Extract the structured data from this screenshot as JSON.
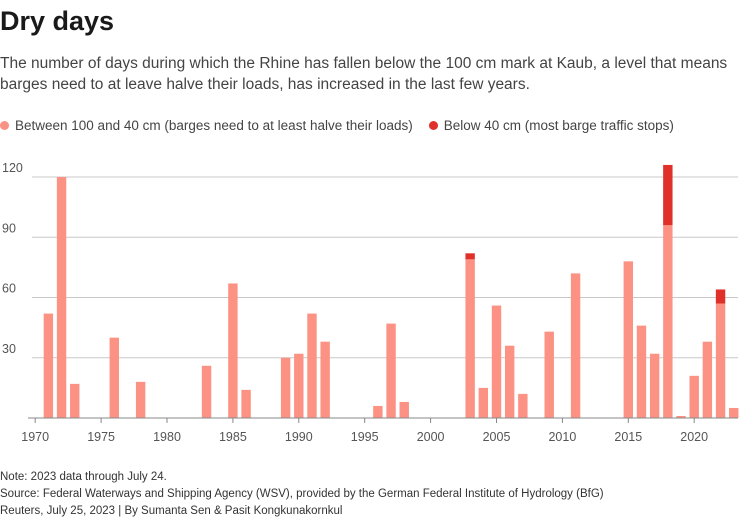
{
  "header": {
    "title": "Dry days",
    "subtitle": "The number of days during which the Rhine has fallen below the 100 cm mark at Kaub, a level that means barges need to at leave halve their loads, has increased in the last few years."
  },
  "legend": {
    "items": [
      {
        "label": "Between 100 and 40 cm (barges need to at least halve their loads)",
        "color": "#fb9283"
      },
      {
        "label": "Below 40 cm (most barge traffic stops)",
        "color": "#e0302a"
      }
    ]
  },
  "footer": {
    "note": "Note: 2023 data through July 24.",
    "source": "Source: Federal Waterways and Shipping Agency (WSV), provided by the German Federal Institute of Hydrology (BfG)",
    "credit": "Reuters, July 25, 2023 | By Sumanta Sen & Pasit Kongkunakornkul"
  },
  "chart_data": {
    "type": "bar",
    "stacked": true,
    "title": "Dry days",
    "xlabel": "",
    "ylabel": "",
    "xlim": [
      1969,
      2023
    ],
    "ylim": [
      0,
      128
    ],
    "yticks": [
      30,
      60,
      90,
      120
    ],
    "xticks": [
      1970,
      1975,
      1980,
      1985,
      1990,
      1995,
      2000,
      2005,
      2010,
      2015,
      2020
    ],
    "colors": {
      "moderate": "#fb9283",
      "severe": "#e0302a"
    },
    "series": [
      {
        "name": "Between 100 and 40 cm (barges need to at least halve their loads)",
        "key": "moderate"
      },
      {
        "name": "Below 40 cm (most barge traffic stops)",
        "key": "severe"
      }
    ],
    "data": [
      {
        "year": 1971,
        "moderate": 52,
        "severe": 0
      },
      {
        "year": 1972,
        "moderate": 120,
        "severe": 0
      },
      {
        "year": 1973,
        "moderate": 17,
        "severe": 0
      },
      {
        "year": 1976,
        "moderate": 40,
        "severe": 0
      },
      {
        "year": 1978,
        "moderate": 18,
        "severe": 0
      },
      {
        "year": 1983,
        "moderate": 26,
        "severe": 0
      },
      {
        "year": 1985,
        "moderate": 67,
        "severe": 0
      },
      {
        "year": 1986,
        "moderate": 14,
        "severe": 0
      },
      {
        "year": 1989,
        "moderate": 30,
        "severe": 0
      },
      {
        "year": 1990,
        "moderate": 32,
        "severe": 0
      },
      {
        "year": 1991,
        "moderate": 52,
        "severe": 0
      },
      {
        "year": 1992,
        "moderate": 38,
        "severe": 0
      },
      {
        "year": 1996,
        "moderate": 6,
        "severe": 0
      },
      {
        "year": 1997,
        "moderate": 47,
        "severe": 0
      },
      {
        "year": 1998,
        "moderate": 8,
        "severe": 0
      },
      {
        "year": 2003,
        "moderate": 79,
        "severe": 3
      },
      {
        "year": 2004,
        "moderate": 15,
        "severe": 0
      },
      {
        "year": 2005,
        "moderate": 56,
        "severe": 0
      },
      {
        "year": 2006,
        "moderate": 36,
        "severe": 0
      },
      {
        "year": 2007,
        "moderate": 12,
        "severe": 0
      },
      {
        "year": 2009,
        "moderate": 43,
        "severe": 0
      },
      {
        "year": 2011,
        "moderate": 72,
        "severe": 0
      },
      {
        "year": 2015,
        "moderate": 78,
        "severe": 0
      },
      {
        "year": 2016,
        "moderate": 46,
        "severe": 0
      },
      {
        "year": 2017,
        "moderate": 32,
        "severe": 0
      },
      {
        "year": 2018,
        "moderate": 96,
        "severe": 30
      },
      {
        "year": 2019,
        "moderate": 1,
        "severe": 0
      },
      {
        "year": 2020,
        "moderate": 21,
        "severe": 0
      },
      {
        "year": 2021,
        "moderate": 38,
        "severe": 0
      },
      {
        "year": 2022,
        "moderate": 57,
        "severe": 7
      },
      {
        "year": 2023,
        "moderate": 5,
        "severe": 0
      }
    ]
  }
}
